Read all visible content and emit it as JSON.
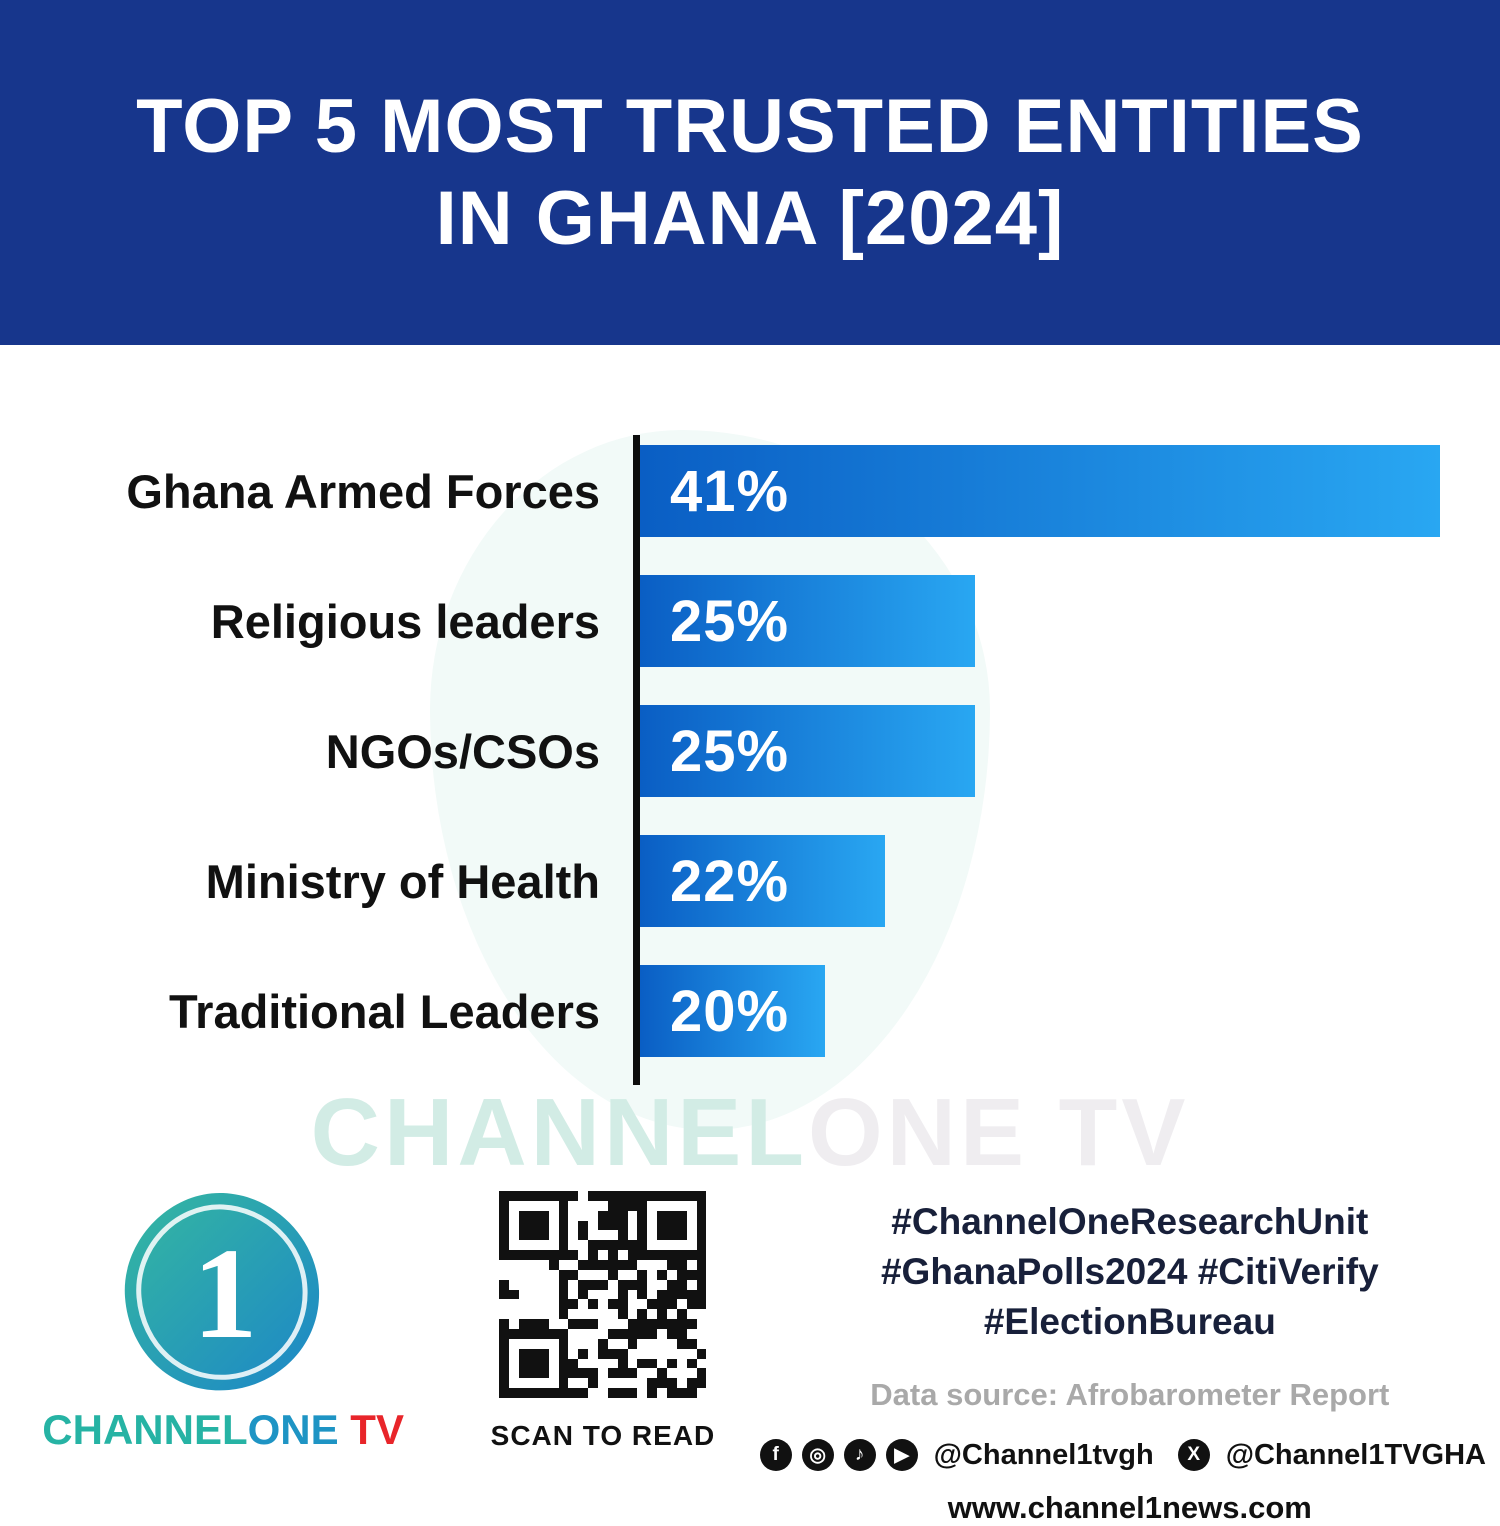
{
  "header": {
    "title_line1": "TOP 5 MOST TRUSTED ENTITIES",
    "title_line2": "IN GHANA [2024]",
    "bg_color": "#17368C"
  },
  "chart_data": {
    "type": "bar",
    "orientation": "horizontal",
    "title": "Top 5 Most Trusted Entities in Ghana [2024]",
    "categories": [
      "Ghana Armed Forces",
      "Religious leaders",
      "NGOs/CSOs",
      "Ministry of Health",
      "Traditional Leaders"
    ],
    "values": [
      41,
      25,
      25,
      22,
      20
    ],
    "value_labels": [
      "41%",
      "25%",
      "25%",
      "22%",
      "20%"
    ],
    "xlabel": "",
    "ylabel": "",
    "xlim": [
      0,
      44
    ],
    "grid": false,
    "legend": false,
    "bar_gradient": [
      "#0A5EC4",
      "#29A7F2"
    ],
    "display_widths_pct": [
      93,
      39,
      39,
      28.5,
      21.5
    ]
  },
  "watermark": {
    "part1": "CHANNEL",
    "part2": "ONE TV"
  },
  "footer": {
    "logo_digit": "1",
    "brand_channel": "CHANNEL",
    "brand_one": "ONE",
    "brand_tv": " TV",
    "qr_caption": "SCAN TO READ",
    "hashtags_line1": "#ChannelOneResearchUnit",
    "hashtags_line2": "#GhanaPolls2024 #CitiVerify",
    "hashtags_line3": "#ElectionBureau",
    "data_source": "Data source: Afrobarometer Report",
    "social_handle_1": "@Channel1tvgh",
    "social_handle_2": "@Channel1TVGHA",
    "website": "www.channel1news.com",
    "icon_names": [
      "facebook-icon",
      "instagram-icon",
      "tiktok-icon",
      "youtube-icon",
      "x-icon"
    ],
    "icon_glyphs": [
      "f",
      "◎",
      "♪",
      "▶",
      "X"
    ]
  }
}
